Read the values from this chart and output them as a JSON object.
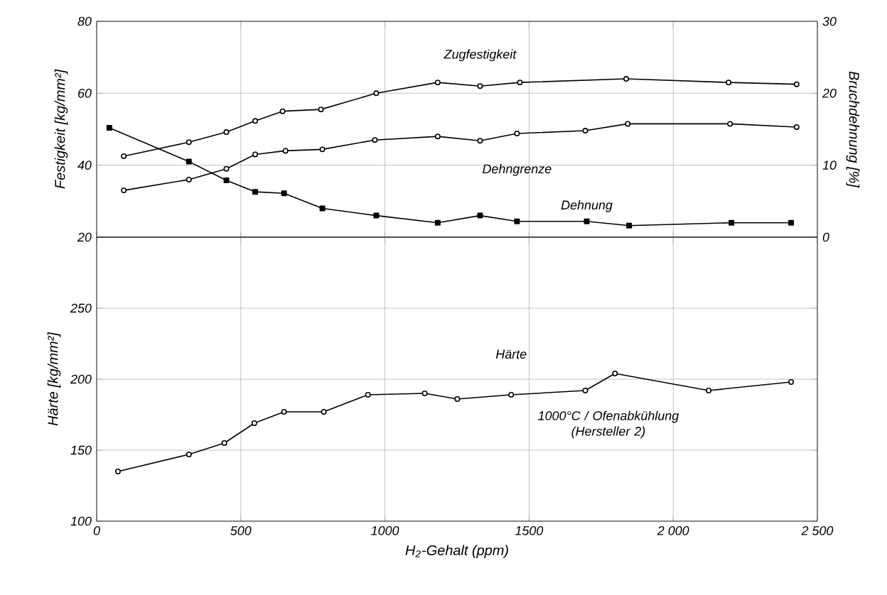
{
  "chart_data": [
    {
      "type": "line",
      "xlabel": null,
      "ylabel": "Festigkeit [kg/mm²]",
      "y2label": "Bruchdehnung [%]",
      "xlim": [
        0,
        2500
      ],
      "xticks": [
        0,
        500,
        1000,
        1500,
        2000,
        2500
      ],
      "ylim": [
        20,
        80
      ],
      "yticks": [
        20,
        40,
        60,
        80
      ],
      "y2lim": [
        0,
        30
      ],
      "y2ticks": [
        0,
        10,
        20,
        30
      ],
      "tick_labels": "y",
      "grid": true,
      "series": [
        {
          "name": "Zugfestigkeit",
          "color": "#000000",
          "marker": "circle",
          "x": [
            94,
            320,
            450,
            550,
            645,
            778,
            970,
            1183,
            1330,
            1468,
            1837,
            2192,
            2428
          ],
          "values": [
            42.5,
            46.4,
            49.2,
            52.3,
            55,
            55.5,
            60,
            63,
            62,
            63,
            64,
            63,
            62.5
          ]
        },
        {
          "name": "Dehngrenze",
          "color": "#000000",
          "marker": "circle",
          "x": [
            94,
            320,
            450,
            550,
            655,
            783,
            965,
            1183,
            1330,
            1458,
            1695,
            1842,
            2197,
            2428
          ],
          "values": [
            33,
            36,
            39,
            43,
            44,
            44.4,
            47,
            48,
            46.8,
            48.8,
            49.6,
            51.5,
            51.5,
            50.6
          ]
        },
        {
          "name": "Dehnung",
          "color": "#000000",
          "marker": "square",
          "axis": "y2",
          "x": [
            44,
            320,
            450,
            550,
            650,
            783,
            970,
            1183,
            1330,
            1458,
            1700,
            1847,
            2202,
            2409
          ],
          "values": [
            15.2,
            10.5,
            7.9,
            6.3,
            6.1,
            4,
            3,
            2,
            3,
            2.2,
            2.2,
            1.6,
            2,
            2
          ]
        }
      ]
    },
    {
      "type": "line",
      "xlabel": "H$_{2}$-Gehalt (ppm)",
      "ylabel": "Härte [kg/mm²]",
      "xlim": [
        0,
        2500
      ],
      "xticks": [
        0,
        500,
        1000,
        1500,
        {
          "value": 2000,
          "label": "2 000"
        },
        {
          "value": 2500,
          "label": "2 500"
        }
      ],
      "ylim": [
        100,
        300
      ],
      "yticks": [
        100,
        150,
        200,
        250
      ],
      "grid": true,
      "annotations": [
        "1000°C / Ofenabkühlung (Hersteller 2)"
      ],
      "series": [
        {
          "name": "Härte",
          "color": "#000000",
          "marker": "circle",
          "x": [
            74,
            320,
            443,
            547,
            650,
            788,
            941,
            1138,
            1251,
            1438,
            1695,
            1798,
            2123,
            2409
          ],
          "values": [
            135,
            147,
            155,
            169,
            177,
            177,
            189,
            190,
            186,
            189,
            192,
            204,
            192,
            198
          ]
        }
      ]
    }
  ]
}
